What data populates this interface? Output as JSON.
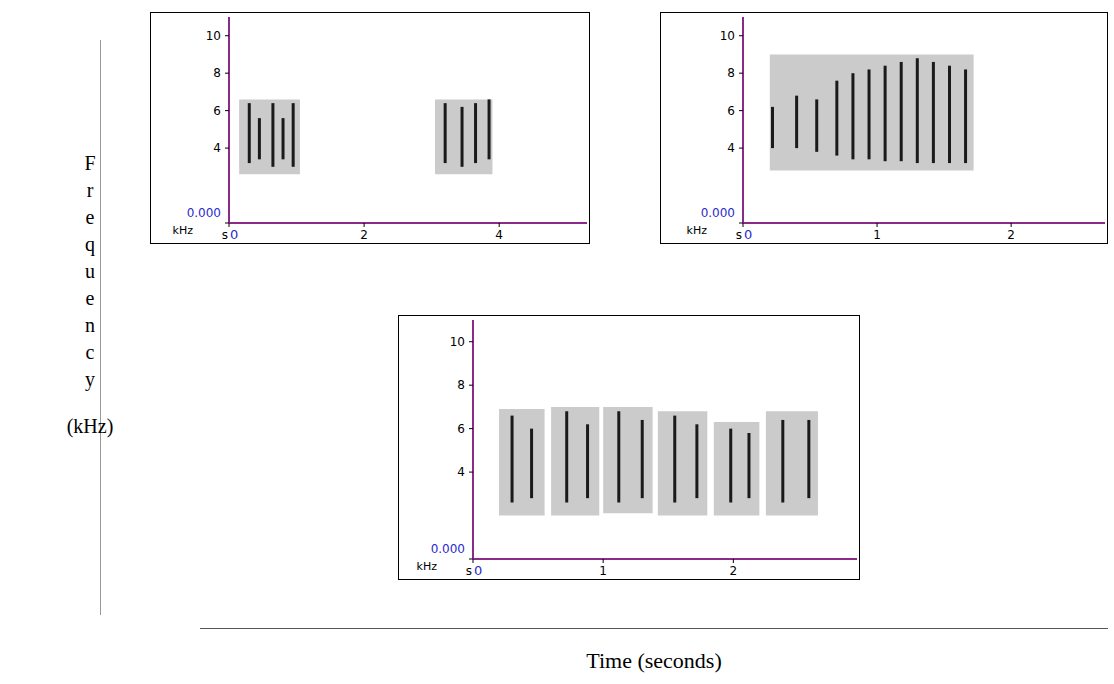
{
  "y_label": "Frequency",
  "y_label_unit": "(kHz)",
  "x_label": "Time (seconds)",
  "chart_data": [
    {
      "type": "spectrogram",
      "x_unit": "s",
      "y_unit": "kHz",
      "xlim": [
        0,
        5.3
      ],
      "ylim": [
        0,
        11
      ],
      "xticks": [
        0,
        2,
        4
      ],
      "yticks": [
        {
          "value": 0,
          "label": "0.000"
        },
        4,
        6,
        8,
        10
      ],
      "syllables": [
        {
          "t0": 0.15,
          "t1": 1.05,
          "f0": 2.6,
          "f1": 6.6
        },
        {
          "t0": 3.05,
          "t1": 3.9,
          "f0": 2.6,
          "f1": 6.6
        }
      ],
      "elements": [
        {
          "t": 0.3,
          "f0": 3.2,
          "f1": 6.4
        },
        {
          "t": 0.45,
          "f0": 3.4,
          "f1": 5.6
        },
        {
          "t": 0.65,
          "f0": 3.0,
          "f1": 6.4
        },
        {
          "t": 0.8,
          "f0": 3.4,
          "f1": 5.6
        },
        {
          "t": 0.95,
          "f0": 3.0,
          "f1": 6.4
        },
        {
          "t": 3.2,
          "f0": 3.2,
          "f1": 6.4
        },
        {
          "t": 3.45,
          "f0": 3.0,
          "f1": 6.2
        },
        {
          "t": 3.65,
          "f0": 3.2,
          "f1": 6.4
        },
        {
          "t": 3.85,
          "f0": 3.4,
          "f1": 6.6
        }
      ]
    },
    {
      "type": "spectrogram",
      "x_unit": "s",
      "y_unit": "kHz",
      "xlim": [
        0,
        2.7
      ],
      "ylim": [
        0,
        11
      ],
      "xticks": [
        0,
        1,
        2
      ],
      "yticks": [
        {
          "value": 0,
          "label": "0.000"
        },
        4,
        6,
        8,
        10
      ],
      "syllables": [
        {
          "t0": 0.2,
          "t1": 1.72,
          "f0": 2.8,
          "f1": 9.0
        }
      ],
      "elements": [
        {
          "t": 0.22,
          "f0": 4.0,
          "f1": 6.2
        },
        {
          "t": 0.4,
          "f0": 4.0,
          "f1": 6.8
        },
        {
          "t": 0.55,
          "f0": 3.8,
          "f1": 6.6
        },
        {
          "t": 0.7,
          "f0": 3.6,
          "f1": 7.6
        },
        {
          "t": 0.82,
          "f0": 3.4,
          "f1": 8.0
        },
        {
          "t": 0.94,
          "f0": 3.4,
          "f1": 8.2
        },
        {
          "t": 1.06,
          "f0": 3.3,
          "f1": 8.4
        },
        {
          "t": 1.18,
          "f0": 3.3,
          "f1": 8.6
        },
        {
          "t": 1.3,
          "f0": 3.2,
          "f1": 8.8
        },
        {
          "t": 1.42,
          "f0": 3.2,
          "f1": 8.6
        },
        {
          "t": 1.54,
          "f0": 3.2,
          "f1": 8.4
        },
        {
          "t": 1.66,
          "f0": 3.2,
          "f1": 8.2
        }
      ]
    },
    {
      "type": "spectrogram",
      "x_unit": "s",
      "y_unit": "kHz",
      "xlim": [
        0,
        2.95
      ],
      "ylim": [
        0,
        11
      ],
      "xticks": [
        0,
        1,
        2
      ],
      "yticks": [
        {
          "value": 0,
          "label": "0.000"
        },
        4,
        6,
        8,
        10
      ],
      "syllables": [
        {
          "t0": 0.2,
          "t1": 0.55,
          "f0": 2.0,
          "f1": 6.9
        },
        {
          "t0": 0.6,
          "t1": 0.97,
          "f0": 2.0,
          "f1": 7.0
        },
        {
          "t0": 1.0,
          "t1": 1.38,
          "f0": 2.1,
          "f1": 7.0
        },
        {
          "t0": 1.42,
          "t1": 1.8,
          "f0": 2.0,
          "f1": 6.8
        },
        {
          "t0": 1.85,
          "t1": 2.2,
          "f0": 2.0,
          "f1": 6.3
        },
        {
          "t0": 2.25,
          "t1": 2.65,
          "f0": 2.0,
          "f1": 6.8
        }
      ],
      "elements": [
        {
          "t": 0.3,
          "f0": 2.6,
          "f1": 6.6
        },
        {
          "t": 0.45,
          "f0": 2.8,
          "f1": 6.0
        },
        {
          "t": 0.72,
          "f0": 2.6,
          "f1": 6.8
        },
        {
          "t": 0.88,
          "f0": 2.8,
          "f1": 6.2
        },
        {
          "t": 1.12,
          "f0": 2.6,
          "f1": 6.8
        },
        {
          "t": 1.3,
          "f0": 2.8,
          "f1": 6.4
        },
        {
          "t": 1.55,
          "f0": 2.6,
          "f1": 6.6
        },
        {
          "t": 1.72,
          "f0": 2.8,
          "f1": 6.2
        },
        {
          "t": 1.98,
          "f0": 2.6,
          "f1": 6.0
        },
        {
          "t": 2.12,
          "f0": 2.8,
          "f1": 5.8
        },
        {
          "t": 2.38,
          "f0": 2.6,
          "f1": 6.4
        },
        {
          "t": 2.58,
          "f0": 2.8,
          "f1": 6.4
        }
      ]
    }
  ]
}
